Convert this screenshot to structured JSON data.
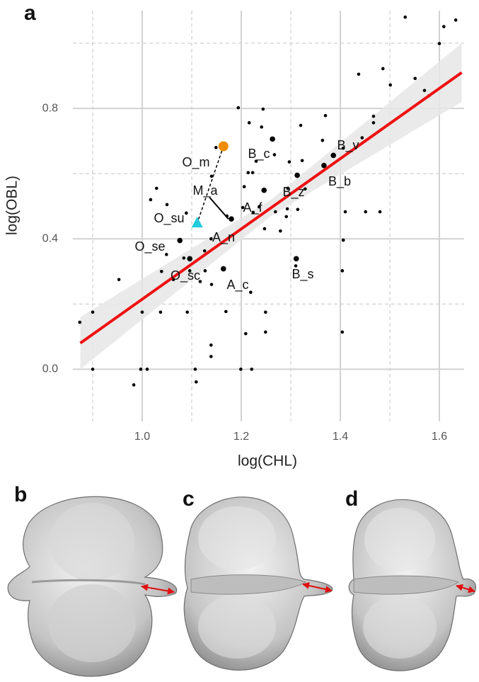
{
  "panel_labels": [
    "a",
    "b",
    "c",
    "d"
  ],
  "chart_data": {
    "type": "scatter",
    "x_label": "log(CHL)",
    "y_label": "log(OBL)",
    "xlim": [
      0.86,
      1.65
    ],
    "ylim": [
      -0.16,
      1.1
    ],
    "xticks": [
      {
        "value": 1,
        "label": "1.0"
      },
      1.2,
      1.4,
      1.6
    ],
    "yticks": [
      {
        "value": 0,
        "label": "0.0"
      },
      0.4,
      0.8
    ],
    "x_minor_grid": [
      0.9,
      1.1,
      1.3,
      1.5
    ],
    "y_minor_grid": [
      0.2,
      0.6,
      1.0
    ],
    "grid": true,
    "point_color": "#000000",
    "points": {
      "x": [
        0.874,
        0.9,
        0.9,
        0.953,
        0.983,
        0.997,
        1.01,
        1.0,
        1.017,
        1.029,
        1.039,
        1.05,
        1.037,
        1.049,
        1.063,
        1.089,
        1.084,
        1.091,
        1.096,
        1.107,
        1.109,
        1.117,
        1.126,
        1.127,
        1.139,
        1.139,
        1.139,
        1.14,
        1.14,
        1.149,
        1.169,
        1.171,
        1.194,
        1.199,
        1.203,
        1.206,
        1.209,
        1.216,
        1.214,
        1.219,
        1.221,
        1.223,
        1.224,
        1.23,
        1.236,
        1.241,
        1.244,
        1.247,
        1.249,
        1.249,
        1.267,
        1.269,
        1.279,
        1.291,
        1.293,
        1.294,
        1.297,
        1.314,
        1.32,
        1.323,
        1.329,
        1.31,
        1.364,
        1.37,
        1.406,
        1.406,
        1.404,
        1.404,
        1.41,
        1.437,
        1.444,
        1.451,
        1.467,
        1.467,
        1.48,
        1.486,
        1.501,
        1.531,
        1.551,
        1.57,
        1.579,
        1.6,
        1.609,
        1.633
      ],
      "y": [
        0.144,
        0.175,
        0.0,
        0.275,
        -0.048,
        0.0,
        0.0,
        0.175,
        0.52,
        0.555,
        0.3,
        0.505,
        0.175,
        0.352,
        0.275,
        0.479,
        0.341,
        0.175,
        0.302,
        0.0,
        -0.039,
        0.269,
        0.363,
        0.302,
        0.4,
        0.074,
        0.039,
        0.592,
        0.26,
        0.68,
        0.177,
        0.47,
        0.802,
        0.0,
        0.496,
        0.56,
        0.109,
        0.756,
        0.603,
        0.236,
        0.0,
        0.603,
        0.481,
        0.638,
        0.498,
        0.743,
        0.798,
        0.431,
        0.114,
        0.175,
        0.658,
        0.483,
        0.424,
        0.468,
        0.492,
        0.555,
        0.636,
        0.49,
        0.748,
        0.64,
        0.553,
        0.317,
        0.702,
        0.778,
        0.678,
        0.396,
        0.302,
        0.114,
        0.483,
        0.905,
        0.71,
        0.483,
        0.776,
        0.756,
        0.483,
        0.922,
        0.872,
        1.08,
        0.892,
        0.855,
        0.839,
        0.999,
        1.051,
        1.071
      ]
    },
    "large_points": {
      "x": [
        1.076,
        1.096,
        1.164,
        1.18,
        1.246,
        1.263,
        1.313,
        1.311,
        1.367,
        1.386
      ],
      "y": [
        0.395,
        0.339,
        0.308,
        0.461,
        0.549,
        0.706,
        0.595,
        0.339,
        0.625,
        0.656
      ]
    },
    "fit": {
      "color": "#ee1111",
      "x": [
        0.875,
        1.645
      ],
      "y": [
        0.08,
        0.91
      ]
    },
    "band": {
      "color": "#e6e6e6",
      "x": [
        0.875,
        1.26,
        1.645
      ],
      "lower": [
        0.0,
        0.47,
        0.82
      ],
      "upper": [
        0.16,
        0.52,
        1.0
      ]
    },
    "O_m_point": {
      "color": "#f08c00",
      "x": 1.164,
      "y": 0.684
    },
    "O_su_point": {
      "color": "#22ccdd",
      "x": 1.111,
      "y": 0.448
    },
    "M_a_segment": {
      "x": [
        1.136,
        1.174
      ],
      "y": [
        0.527,
        0.461
      ]
    },
    "annotations": [
      "O_m",
      "M_a",
      "O_su",
      "O_se",
      "O_sc",
      "A_n",
      "A_f",
      "A_c",
      "B_c",
      "B_z",
      "B_v",
      "B_b",
      "B_s"
    ]
  }
}
